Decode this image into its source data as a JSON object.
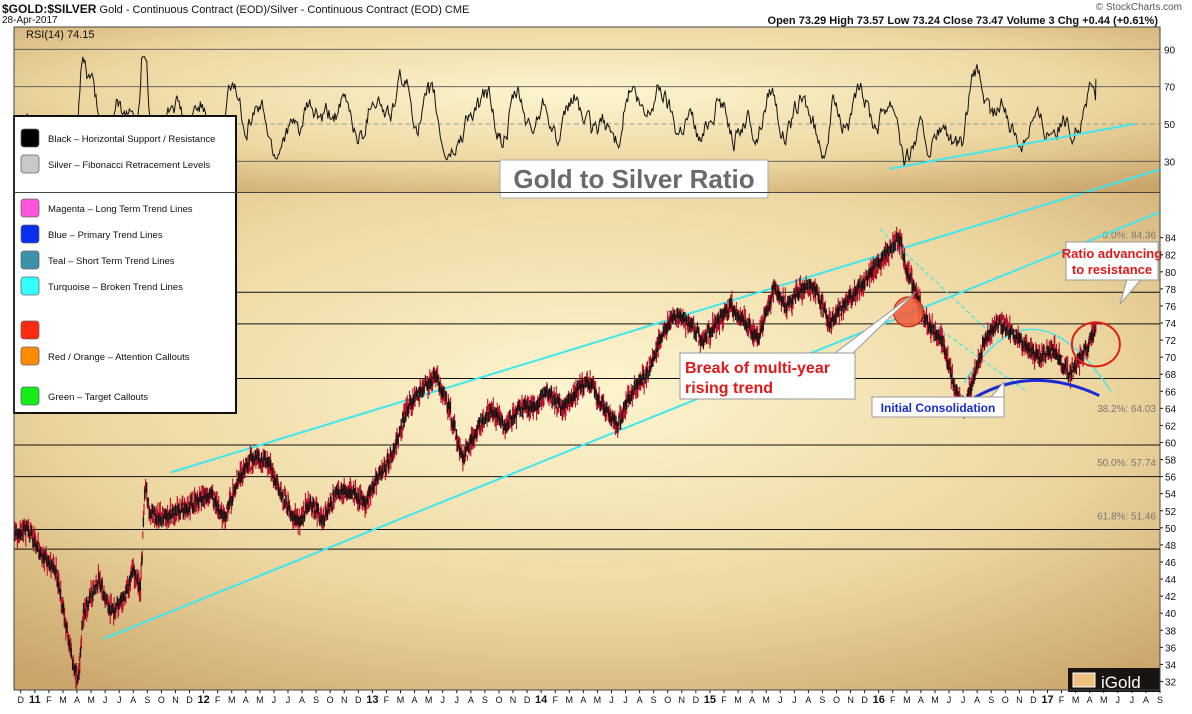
{
  "header": {
    "symbol": "$GOLD:$SILVER",
    "description": "Gold - Continuous Contract (EOD)/Silver - Continuous Contract (EOD) CME",
    "date": "28-Apr-2017",
    "copyright": "© StockCharts.com",
    "ohlc": "Open 73.29  High 73.57  Low 73.24  Close 73.47  Volume 3  Chg +0.44 (+0.61%)"
  },
  "rsi": {
    "label": "RSI(14) 74.15",
    "levels": [
      30,
      50,
      70,
      90
    ],
    "ticks": [
      "90",
      "70",
      "50",
      "30"
    ]
  },
  "title": "Gold to Silver Ratio",
  "legend": [
    {
      "label": "Black – Horizontal Support / Resistance",
      "color": "#000000"
    },
    {
      "label": "Silver – Fibonacci Retracement Levels",
      "color": "#c8c8c8"
    },
    {
      "label": "Magenta – Long Term Trend Lines",
      "color": "#ff55dd"
    },
    {
      "label": "Blue – Primary Trend Lines",
      "color": "#0a2ff0"
    },
    {
      "label": "Teal – Short Term Trend Lines",
      "color": "#3a93a8"
    },
    {
      "label": "Turquoise – Broken Trend Lines",
      "color": "#33ffff"
    },
    {
      "label": "",
      "color": "#ff2a12"
    },
    {
      "label": "Red / Orange – Attention Callouts",
      "color": "#ff8c00"
    },
    {
      "label": "Green – Target Callouts",
      "color": "#14ee14"
    }
  ],
  "annotations": {
    "break": [
      "Break of multi-year",
      "rising trend"
    ],
    "advancing": [
      "Ratio advancing",
      "to resistance"
    ],
    "consolidation": "Initial Consolidation"
  },
  "fib_labels": [
    "0.0%: 84.36",
    "38.2%: 64.03",
    "50.0%: 57.74",
    "61.8%: 51.46"
  ],
  "logo": "iGold",
  "colors": {
    "price": "#b8102a",
    "candle": "#111111",
    "turquoise": "#40e6ee",
    "blue": "#1a2ad6",
    "red": "#e02010",
    "bg_top": "#fdf5cf",
    "bg_edge": "#c9a56a"
  },
  "x_axis": [
    "D",
    "11",
    "F",
    "M",
    "A",
    "M",
    "J",
    "J",
    "A",
    "S",
    "O",
    "N",
    "D",
    "12",
    "F",
    "M",
    "A",
    "M",
    "J",
    "J",
    "A",
    "S",
    "O",
    "N",
    "D",
    "13",
    "F",
    "M",
    "A",
    "M",
    "J",
    "J",
    "A",
    "S",
    "O",
    "N",
    "D",
    "14",
    "F",
    "M",
    "A",
    "M",
    "J",
    "J",
    "A",
    "S",
    "O",
    "N",
    "D",
    "15",
    "F",
    "M",
    "A",
    "M",
    "J",
    "J",
    "A",
    "S",
    "O",
    "N",
    "D",
    "16",
    "F",
    "M",
    "A",
    "M",
    "J",
    "J",
    "A",
    "S",
    "O",
    "N",
    "D",
    "17",
    "F",
    "M",
    "A",
    "M",
    "J",
    "J",
    "A",
    "S"
  ],
  "chart_data": {
    "type": "line",
    "title": "Gold to Silver Ratio",
    "y_ticks": [
      32,
      34,
      36,
      38,
      40,
      42,
      44,
      46,
      48,
      50,
      52,
      54,
      56,
      58,
      60,
      62,
      64,
      66,
      68,
      70,
      72,
      74,
      76,
      78,
      80,
      82,
      84
    ],
    "ylim": [
      31,
      89
    ],
    "xlim": [
      2010.92,
      2017.71
    ],
    "horizontal_lines": [
      47.5,
      49.8,
      56.0,
      59.7,
      67.5,
      73.9,
      77.6
    ],
    "fib_levels": [
      84.36,
      64.03,
      57.74,
      51.46
    ],
    "trend_lines": [
      {
        "x": [
          2011.85,
          2017.71
        ],
        "y": [
          56.5,
          92.0
        ]
      },
      {
        "x": [
          2011.45,
          2017.71
        ],
        "y": [
          37.0,
          87.0
        ]
      }
    ],
    "price_series": {
      "name": "$GOLD:$SILVER",
      "x": [
        2010.92,
        2011.0,
        2011.08,
        2011.17,
        2011.25,
        2011.3,
        2011.33,
        2011.42,
        2011.5,
        2011.58,
        2011.62,
        2011.67,
        2011.7,
        2011.72,
        2011.8,
        2011.9,
        2012.0,
        2012.08,
        2012.17,
        2012.25,
        2012.33,
        2012.42,
        2012.5,
        2012.58,
        2012.62,
        2012.67,
        2012.75,
        2012.83,
        2012.92,
        2013.0,
        2013.08,
        2013.17,
        2013.25,
        2013.33,
        2013.42,
        2013.5,
        2013.55,
        2013.58,
        2013.67,
        2013.75,
        2013.83,
        2013.92,
        2014.0,
        2014.08,
        2014.17,
        2014.25,
        2014.33,
        2014.42,
        2014.5,
        2014.58,
        2014.67,
        2014.75,
        2014.83,
        2014.92,
        2015.0,
        2015.08,
        2015.17,
        2015.25,
        2015.33,
        2015.42,
        2015.5,
        2015.58,
        2015.67,
        2015.75,
        2015.83,
        2015.92,
        2016.0,
        2016.08,
        2016.17,
        2016.2,
        2016.25,
        2016.33,
        2016.42,
        2016.5,
        2016.55,
        2016.58,
        2016.67,
        2016.75,
        2016.83,
        2016.92,
        2017.0,
        2017.08,
        2017.17,
        2017.25,
        2017.33
      ],
      "y": [
        49,
        50,
        47,
        45,
        36,
        32,
        40,
        44,
        40,
        42,
        45,
        43,
        56,
        52,
        51,
        52,
        53,
        54,
        51,
        56,
        58,
        58,
        54,
        51,
        51,
        53,
        51,
        54,
        54,
        53,
        56,
        59,
        64,
        66,
        68,
        64,
        60,
        58,
        62,
        64,
        62,
        64,
        64,
        66,
        64,
        66,
        67,
        64,
        62,
        66,
        68,
        72,
        75,
        74,
        72,
        74,
        76,
        74,
        72,
        78,
        76,
        78,
        78,
        74,
        76,
        78,
        80,
        82,
        84,
        81,
        78,
        74,
        72,
        66,
        64,
        66,
        72,
        74,
        73,
        71,
        70,
        71,
        68,
        70,
        73.5
      ]
    }
  }
}
